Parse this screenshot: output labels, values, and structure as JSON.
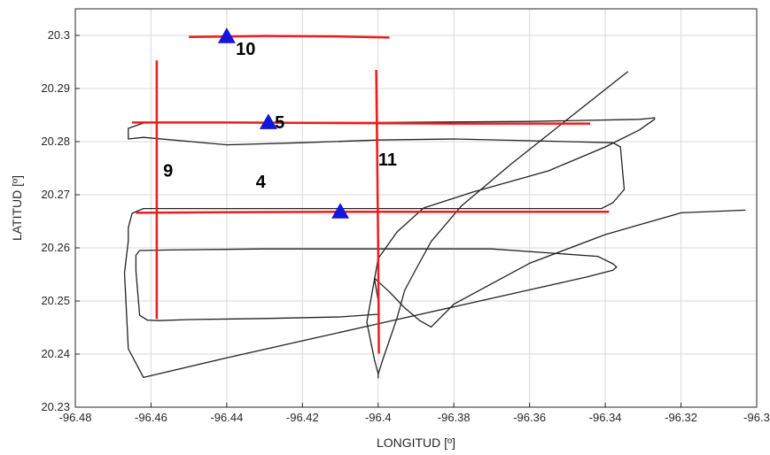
{
  "chart_data": {
    "type": "line",
    "title": "",
    "xlabel": "LONGITUD [º]",
    "ylabel": "LATITUD [º]",
    "xlim": [
      -96.48,
      -96.3
    ],
    "ylim": [
      20.23,
      20.305
    ],
    "xticks": [
      -96.48,
      -96.46,
      -96.44,
      -96.42,
      -96.4,
      -96.38,
      -96.36,
      -96.34,
      -96.32,
      -96.3
    ],
    "yticks": [
      20.23,
      20.24,
      20.25,
      20.26,
      20.27,
      20.28,
      20.29,
      20.3
    ],
    "xtick_labels": [
      "-96.48",
      "-96.46",
      "-96.44",
      "-96.42",
      "-96.4",
      "-96.38",
      "-96.36",
      "-96.34",
      "-96.32",
      "-96.3"
    ],
    "ytick_labels": [
      "20.23",
      "20.24",
      "20.25",
      "20.26",
      "20.27",
      "20.28",
      "20.29",
      "20.3"
    ],
    "grid": true,
    "colors": {
      "track": "#222222",
      "highlight": "#ee1c1c",
      "marker": "#1515e0",
      "grid": "#d9d9d9",
      "axis": "#262626"
    },
    "track": {
      "x": [
        -96.334,
        -96.35,
        -96.365,
        -96.378,
        -96.386,
        -96.39,
        -96.393,
        -96.395,
        -96.399,
        -96.4,
        -96.4,
        -96.4,
        -96.401,
        -96.403,
        -96.4,
        -96.395,
        -96.388,
        -96.375,
        -96.355,
        -96.34,
        -96.331,
        -96.327,
        -96.327,
        -96.328,
        -96.331,
        -96.36,
        -96.4,
        -96.44,
        -96.462,
        -96.466,
        -96.466,
        -96.462,
        -96.44,
        -96.42,
        -96.4,
        -96.38,
        -96.35,
        -96.338,
        -96.336,
        -96.335,
        -96.338,
        -96.341,
        -96.35,
        -96.4,
        -96.44,
        -96.462,
        -96.465,
        -96.466,
        -96.466,
        -96.467,
        -96.466,
        -96.462,
        -96.44,
        -96.42,
        -96.4,
        -96.38,
        -96.36,
        -96.345,
        -96.338,
        -96.337,
        -96.338,
        -96.342,
        -96.37,
        -96.4,
        -96.43,
        -96.455,
        -96.463,
        -96.464,
        -96.464,
        -96.463,
        -96.461,
        -96.458,
        -96.45,
        -96.43,
        -96.41,
        -96.4,
        -96.4,
        -96.4,
        -96.4,
        -96.4,
        -96.401,
        -96.397,
        -96.393,
        -96.389,
        -96.386,
        -96.38,
        -96.36,
        -96.34,
        -96.32,
        -96.303
      ],
      "y": [
        20.2932,
        20.2842,
        20.2757,
        20.2679,
        20.2612,
        20.256,
        20.252,
        20.2468,
        20.2385,
        20.2362,
        20.2355,
        20.2363,
        20.239,
        20.246,
        20.258,
        20.263,
        20.2675,
        20.2705,
        20.2745,
        20.279,
        20.2822,
        20.2842,
        20.2845,
        20.2844,
        20.2842,
        20.2838,
        20.2836,
        20.2836,
        20.2835,
        20.2825,
        20.2805,
        20.2808,
        20.2794,
        20.2798,
        20.2803,
        20.2805,
        20.28,
        20.2798,
        20.279,
        20.271,
        20.2685,
        20.2674,
        20.2674,
        20.2674,
        20.2674,
        20.2674,
        20.2665,
        20.2638,
        20.2613,
        20.2553,
        20.241,
        20.2356,
        20.2393,
        20.2425,
        20.2457,
        20.2489,
        20.2521,
        20.2545,
        20.2558,
        20.2564,
        20.257,
        20.2584,
        20.2598,
        20.2598,
        20.2598,
        20.2596,
        20.2595,
        20.2586,
        20.2557,
        20.2473,
        20.2464,
        20.2463,
        20.2465,
        20.2467,
        20.247,
        20.2475,
        20.2482,
        20.2488,
        20.2495,
        20.2501,
        20.2543,
        20.2517,
        20.2487,
        20.2463,
        20.2451,
        20.2494,
        20.2571,
        20.2625,
        20.2666,
        20.2671
      ]
    },
    "highlighted_segments": [
      {
        "label": "10",
        "x": [
          -96.45,
          -96.43,
          -96.41,
          -96.397
        ],
        "y": [
          20.2997,
          20.2999,
          20.2998,
          20.2996
        ],
        "marker": [
          -96.44,
          20.2998
        ]
      },
      {
        "label": "5",
        "x": [
          -96.465,
          -96.44,
          -96.41,
          -96.38,
          -96.35,
          -96.344
        ],
        "y": [
          20.2836,
          20.2836,
          20.2835,
          20.2834,
          20.2834,
          20.2834
        ],
        "marker": [
          -96.429,
          20.2836
        ]
      },
      {
        "label": "4",
        "x": [
          -96.464,
          -96.44,
          -96.41,
          -96.38,
          -96.35,
          -96.339
        ],
        "y": [
          20.2666,
          20.2667,
          20.2668,
          20.2668,
          20.2668,
          20.2668
        ],
        "marker": [
          -96.41,
          20.2668
        ]
      },
      {
        "label": "9",
        "x": [
          -96.4585,
          -96.4585,
          -96.4585,
          -96.4585
        ],
        "y": [
          20.2953,
          20.28,
          20.265,
          20.2466
        ],
        "marker": null
      },
      {
        "label": "11",
        "x": [
          -96.4005,
          -96.4003,
          -96.4,
          -96.3998
        ],
        "y": [
          20.2935,
          20.28,
          20.26,
          20.2401
        ],
        "marker": null
      }
    ],
    "annotations": [
      {
        "text": "10",
        "x": -96.435,
        "y": 20.2963
      },
      {
        "text": "5",
        "x": -96.426,
        "y": 20.2825
      },
      {
        "text": "4",
        "x": -96.431,
        "y": 20.2713
      },
      {
        "text": "9",
        "x": -96.4555,
        "y": 20.2734
      },
      {
        "text": "11",
        "x": -96.3975,
        "y": 20.2755
      }
    ]
  }
}
